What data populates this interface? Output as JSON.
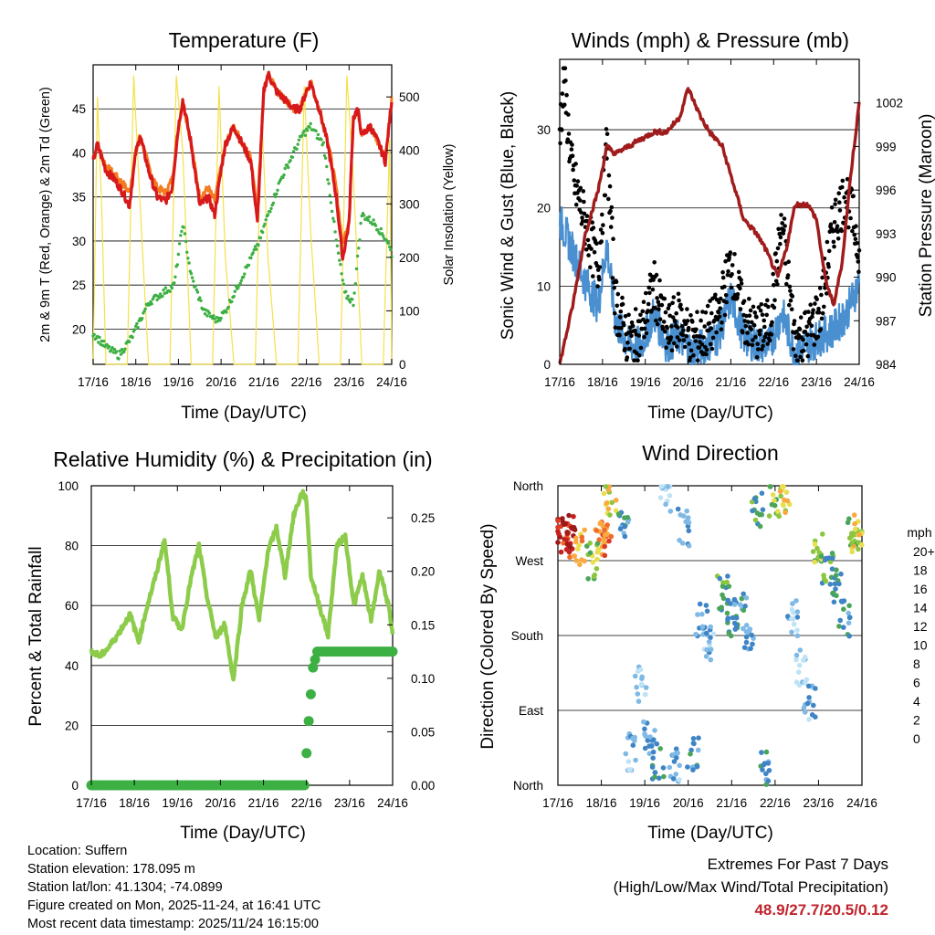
{
  "x_ticks": [
    "17/16",
    "18/16",
    "19/16",
    "20/16",
    "21/16",
    "22/16",
    "23/16",
    "24/16"
  ],
  "colors": {
    "temp2m": "#d7191c",
    "temp9m": "#f47c20",
    "dewpoint": "#3cb043",
    "solar": "#f5e14a",
    "wind": "#4a90d0",
    "gust": "#000000",
    "pressure": "#a01c1c",
    "humidity": "#8ccc4a",
    "precip": "#3cb043",
    "extremes": "#c0232c"
  },
  "chart_data": [
    {
      "id": "temperature",
      "type": "line",
      "title": "Temperature (F)",
      "xlabel": "Time (Day/UTC)",
      "ylabel": "2m & 9m T (Red, Orange) & 2m Td (Green)",
      "ylabel_right": "Solar Insolation (Yellow)",
      "xlim": [
        0,
        7
      ],
      "ylim": [
        16,
        50
      ],
      "ylim_right": [
        0,
        560
      ],
      "y_ticks": [
        20,
        25,
        30,
        35,
        40,
        45
      ],
      "y_ticks_right": [
        0,
        100,
        200,
        300,
        400,
        500
      ],
      "grid": true,
      "series": [
        {
          "name": "2m T",
          "color_key": "temp2m",
          "x": [
            0,
            0.1,
            0.3,
            0.5,
            0.7,
            0.85,
            1,
            1.1,
            1.3,
            1.5,
            1.7,
            1.85,
            2,
            2.1,
            2.3,
            2.5,
            2.7,
            2.85,
            3,
            3.1,
            3.3,
            3.5,
            3.7,
            3.85,
            4,
            4.1,
            4.3,
            4.5,
            4.7,
            4.85,
            5,
            5.1,
            5.3,
            5.5,
            5.7,
            5.85,
            6,
            6.1,
            6.2,
            6.3,
            6.5,
            6.7,
            6.85,
            7
          ],
          "values": [
            39,
            41,
            38,
            37,
            35.5,
            34,
            40,
            42,
            38,
            35,
            34.5,
            36,
            43,
            46,
            41,
            34,
            35,
            33,
            38,
            41,
            43,
            41,
            39,
            32,
            47,
            49,
            47,
            46,
            45,
            45,
            47,
            48,
            45,
            41,
            35,
            28,
            32,
            44,
            45,
            42,
            43,
            41,
            39,
            46
          ]
        },
        {
          "name": "9m T",
          "color_key": "temp9m",
          "x": [
            0,
            0.1,
            0.3,
            0.5,
            0.7,
            0.85,
            1,
            1.1,
            1.3,
            1.5,
            1.7,
            1.85,
            2,
            2.1,
            2.3,
            2.5,
            2.7,
            2.85,
            3,
            3.1,
            3.3,
            3.5,
            3.7,
            3.85,
            4,
            4.1,
            4.3,
            4.5,
            4.7,
            4.85,
            5,
            5.1,
            5.3,
            5.5,
            5.7,
            5.85,
            6,
            6.1,
            6.2,
            6.3,
            6.5,
            6.7,
            6.85,
            7
          ],
          "values": [
            39.5,
            41,
            38.5,
            37.5,
            36.5,
            35.5,
            40,
            42,
            38.5,
            36,
            35.5,
            37,
            43,
            46,
            41,
            35,
            36,
            34.5,
            38.5,
            41,
            43,
            41,
            39.5,
            33.5,
            47,
            49,
            47,
            46,
            45,
            45,
            47,
            48,
            45,
            41.5,
            36,
            29.5,
            32.5,
            44,
            45,
            42,
            43,
            41,
            39.5,
            46
          ]
        },
        {
          "name": "2m Td",
          "color_key": "dewpoint",
          "x": [
            0,
            0.3,
            0.6,
            0.9,
            1.1,
            1.3,
            1.6,
            1.9,
            2.1,
            2.3,
            2.6,
            2.9,
            3.1,
            3.3,
            3.6,
            3.9,
            4.1,
            4.4,
            4.7,
            4.9,
            5.1,
            5.4,
            5.7,
            5.9,
            6.1,
            6.3,
            6.6,
            6.9,
            7
          ],
          "values": [
            19.5,
            18,
            17,
            19,
            21,
            23,
            24,
            25,
            32,
            26,
            22,
            21,
            22,
            24,
            27,
            30,
            33,
            37,
            40,
            42,
            43,
            41,
            30,
            24,
            23,
            33,
            32,
            30,
            28.5
          ]
        },
        {
          "name": "Solar",
          "color_key": "solar",
          "axis": "right",
          "x": [
            0,
            0.1,
            0.2,
            0.3,
            0.5,
            0.8,
            0.95,
            1.1,
            1.3,
            1.5,
            1.8,
            1.95,
            2.1,
            2.3,
            2.5,
            2.8,
            2.95,
            3.1,
            3.3,
            3.5,
            3.8,
            3.95,
            4.1,
            4.3,
            4.5,
            4.8,
            4.95,
            5.1,
            5.3,
            5.5,
            5.8,
            5.95,
            6.1,
            6.3,
            6.5,
            6.8,
            6.95,
            7
          ],
          "values": [
            0,
            500,
            300,
            0,
            0,
            0,
            540,
            300,
            0,
            0,
            0,
            540,
            400,
            0,
            0,
            0,
            520,
            200,
            0,
            0,
            0,
            470,
            200,
            0,
            0,
            0,
            520,
            250,
            0,
            0,
            0,
            540,
            350,
            0,
            0,
            0,
            420,
            0
          ]
        }
      ]
    },
    {
      "id": "winds",
      "type": "scatter",
      "title": "Winds (mph) & Pressure (mb)",
      "xlabel": "Time (Day/UTC)",
      "ylabel": "Sonic Wind & Gust (Blue, Black)",
      "ylabel_right": "Station Pressure (Maroon)",
      "xlim": [
        0,
        7
      ],
      "ylim": [
        0,
        39
      ],
      "ylim_right": [
        984,
        1005
      ],
      "y_ticks": [
        0,
        10,
        20,
        30
      ],
      "y_ticks_right": [
        984,
        987,
        990,
        993,
        996,
        999,
        1002
      ],
      "grid": true,
      "series": [
        {
          "name": "Wind",
          "color_key": "wind",
          "x": [
            0,
            0.3,
            0.6,
            0.9,
            1.1,
            1.3,
            1.6,
            1.9,
            2.2,
            2.5,
            2.8,
            3.1,
            3.4,
            3.7,
            4,
            4.3,
            4.6,
            4.9,
            5.2,
            5.5,
            5.8,
            6.1,
            6.4,
            6.7,
            7
          ],
          "values": [
            18,
            14,
            10,
            7,
            15,
            5,
            2,
            2,
            6,
            2,
            3,
            1,
            2,
            3,
            8,
            3,
            2,
            2,
            6,
            1,
            2,
            3,
            4,
            6,
            10
          ]
        },
        {
          "name": "Gust",
          "color_key": "gust",
          "x": [
            0,
            0.1,
            0.3,
            0.6,
            0.9,
            1.1,
            1.3,
            1.6,
            1.9,
            2.2,
            2.5,
            2.8,
            3.1,
            3.4,
            3.7,
            4,
            4.3,
            4.6,
            4.9,
            5.2,
            5.5,
            5.8,
            6.1,
            6.4,
            6.7,
            7
          ],
          "values": [
            30,
            36,
            24,
            18,
            12,
            28,
            8,
            3,
            4,
            10,
            4,
            6,
            3,
            4,
            6,
            13,
            6,
            4,
            5,
            18,
            3,
            4,
            7,
            18,
            22,
            15
          ]
        },
        {
          "name": "Pressure",
          "color_key": "pressure",
          "axis": "right",
          "x": [
            0,
            0.3,
            0.6,
            0.9,
            1.1,
            1.3,
            1.6,
            1.9,
            2.2,
            2.5,
            2.8,
            3,
            3.3,
            3.5,
            3.8,
            4,
            4.3,
            4.6,
            4.8,
            5.1,
            5.3,
            5.5,
            5.8,
            6,
            6.2,
            6.4,
            6.6,
            6.8,
            7
          ],
          "values": [
            984,
            988,
            993,
            996,
            999,
            998.5,
            999,
            999.5,
            1000,
            1000,
            1001,
            1003,
            1001,
            1000,
            999,
            997,
            994,
            993,
            992,
            990,
            992,
            995,
            995,
            994,
            990,
            988,
            991,
            997,
            1002
          ]
        }
      ]
    },
    {
      "id": "humidity",
      "type": "line",
      "title": "Relative Humidity (%) & Precipitation (in)",
      "xlabel": "Time (Day/UTC)",
      "ylabel": "Percent & Total Rainfall",
      "xlim": [
        0,
        7
      ],
      "ylim": [
        0,
        100
      ],
      "ylim_right": [
        0,
        0.28
      ],
      "y_ticks": [
        0,
        20,
        40,
        60,
        80,
        100
      ],
      "y_ticks_right": [
        "0.00",
        "0.05",
        "0.10",
        "0.15",
        "0.20",
        "0.25"
      ],
      "grid": true,
      "series": [
        {
          "name": "Relative Humidity",
          "color_key": "humidity",
          "x": [
            0,
            0.2,
            0.4,
            0.6,
            0.9,
            1.1,
            1.3,
            1.5,
            1.7,
            1.9,
            2.1,
            2.3,
            2.5,
            2.7,
            2.9,
            3.1,
            3.3,
            3.5,
            3.7,
            3.9,
            4.1,
            4.3,
            4.5,
            4.7,
            4.9,
            5,
            5.1,
            5.3,
            5.5,
            5.7,
            5.9,
            6.1,
            6.3,
            6.5,
            6.7,
            6.9,
            7
          ],
          "values": [
            45,
            43,
            46,
            50,
            57,
            48,
            60,
            70,
            82,
            56,
            52,
            68,
            80,
            62,
            49,
            54,
            35,
            60,
            72,
            55,
            78,
            86,
            70,
            90,
            98,
            95,
            70,
            60,
            50,
            80,
            83,
            60,
            70,
            55,
            72,
            60,
            50
          ]
        },
        {
          "name": "Total Precipitation",
          "color_key": "precip",
          "axis": "right",
          "x": [
            0,
            4.95,
            5.05,
            5.15,
            5.25,
            7
          ],
          "values": [
            0,
            0,
            0.06,
            0.11,
            0.125,
            0.125
          ]
        }
      ]
    },
    {
      "id": "wind_direction",
      "type": "scatter",
      "title": "Wind Direction",
      "xlabel": "Time (Day/UTC)",
      "ylabel": "Direction (Colored By Speed)",
      "xlim": [
        0,
        7
      ],
      "ylim": [
        0,
        360
      ],
      "y_ticks": [
        "North",
        "East",
        "South",
        "West",
        "North"
      ],
      "grid": true,
      "colorbar": {
        "label": "mph",
        "levels": [
          "0",
          "2",
          "4",
          "6",
          "8",
          "10",
          "12",
          "14",
          "16",
          "18",
          "20+"
        ]
      },
      "series": [
        {
          "name": "Direction",
          "color_key": "speed",
          "x": [
            0.1,
            0.2,
            0.3,
            0.5,
            0.8,
            1,
            1.1,
            1.2,
            1.5,
            1.7,
            1.9,
            2.1,
            2.3,
            2.5,
            2.7,
            2.9,
            3.1,
            3.3,
            3.5,
            3.8,
            4,
            4.2,
            4.4,
            4.6,
            4.8,
            5,
            5.2,
            5.4,
            5.6,
            5.8,
            6,
            6.2,
            6.4,
            6.6,
            6.8,
            6.9
          ],
          "values": [
            300,
            295,
            305,
            285,
            270,
            290,
            295,
            340,
            310,
            40,
            120,
            60,
            30,
            350,
            25,
            310,
            40,
            200,
            170,
            230,
            200,
            210,
            180,
            330,
            20,
            340,
            350,
            200,
            140,
            100,
            280,
            260,
            240,
            200,
            300,
            310
          ],
          "speeds": [
            18,
            16,
            20,
            12,
            8,
            12,
            14,
            10,
            4,
            2,
            1,
            3,
            5,
            1,
            2,
            3,
            4,
            3,
            2,
            6,
            5,
            4,
            3,
            6,
            4,
            8,
            10,
            2,
            1,
            2,
            8,
            6,
            5,
            4,
            8,
            10
          ]
        }
      ]
    }
  ],
  "info": {
    "location": "Location: Suffern",
    "elevation": "Station elevation: 178.095 m",
    "latlon": "Station lat/lon: 41.1304; -74.0899",
    "created": "Figure created on Mon, 2025-11-24, at 16:41 UTC",
    "recent": "Most recent data timestamp: 2025/11/24 16:15:00"
  },
  "extremes": {
    "title": "Extremes For Past 7 Days",
    "subtitle": "(High/Low/Max Wind/Total Precipitation)",
    "values": "48.9/27.7/20.5/0.12"
  }
}
